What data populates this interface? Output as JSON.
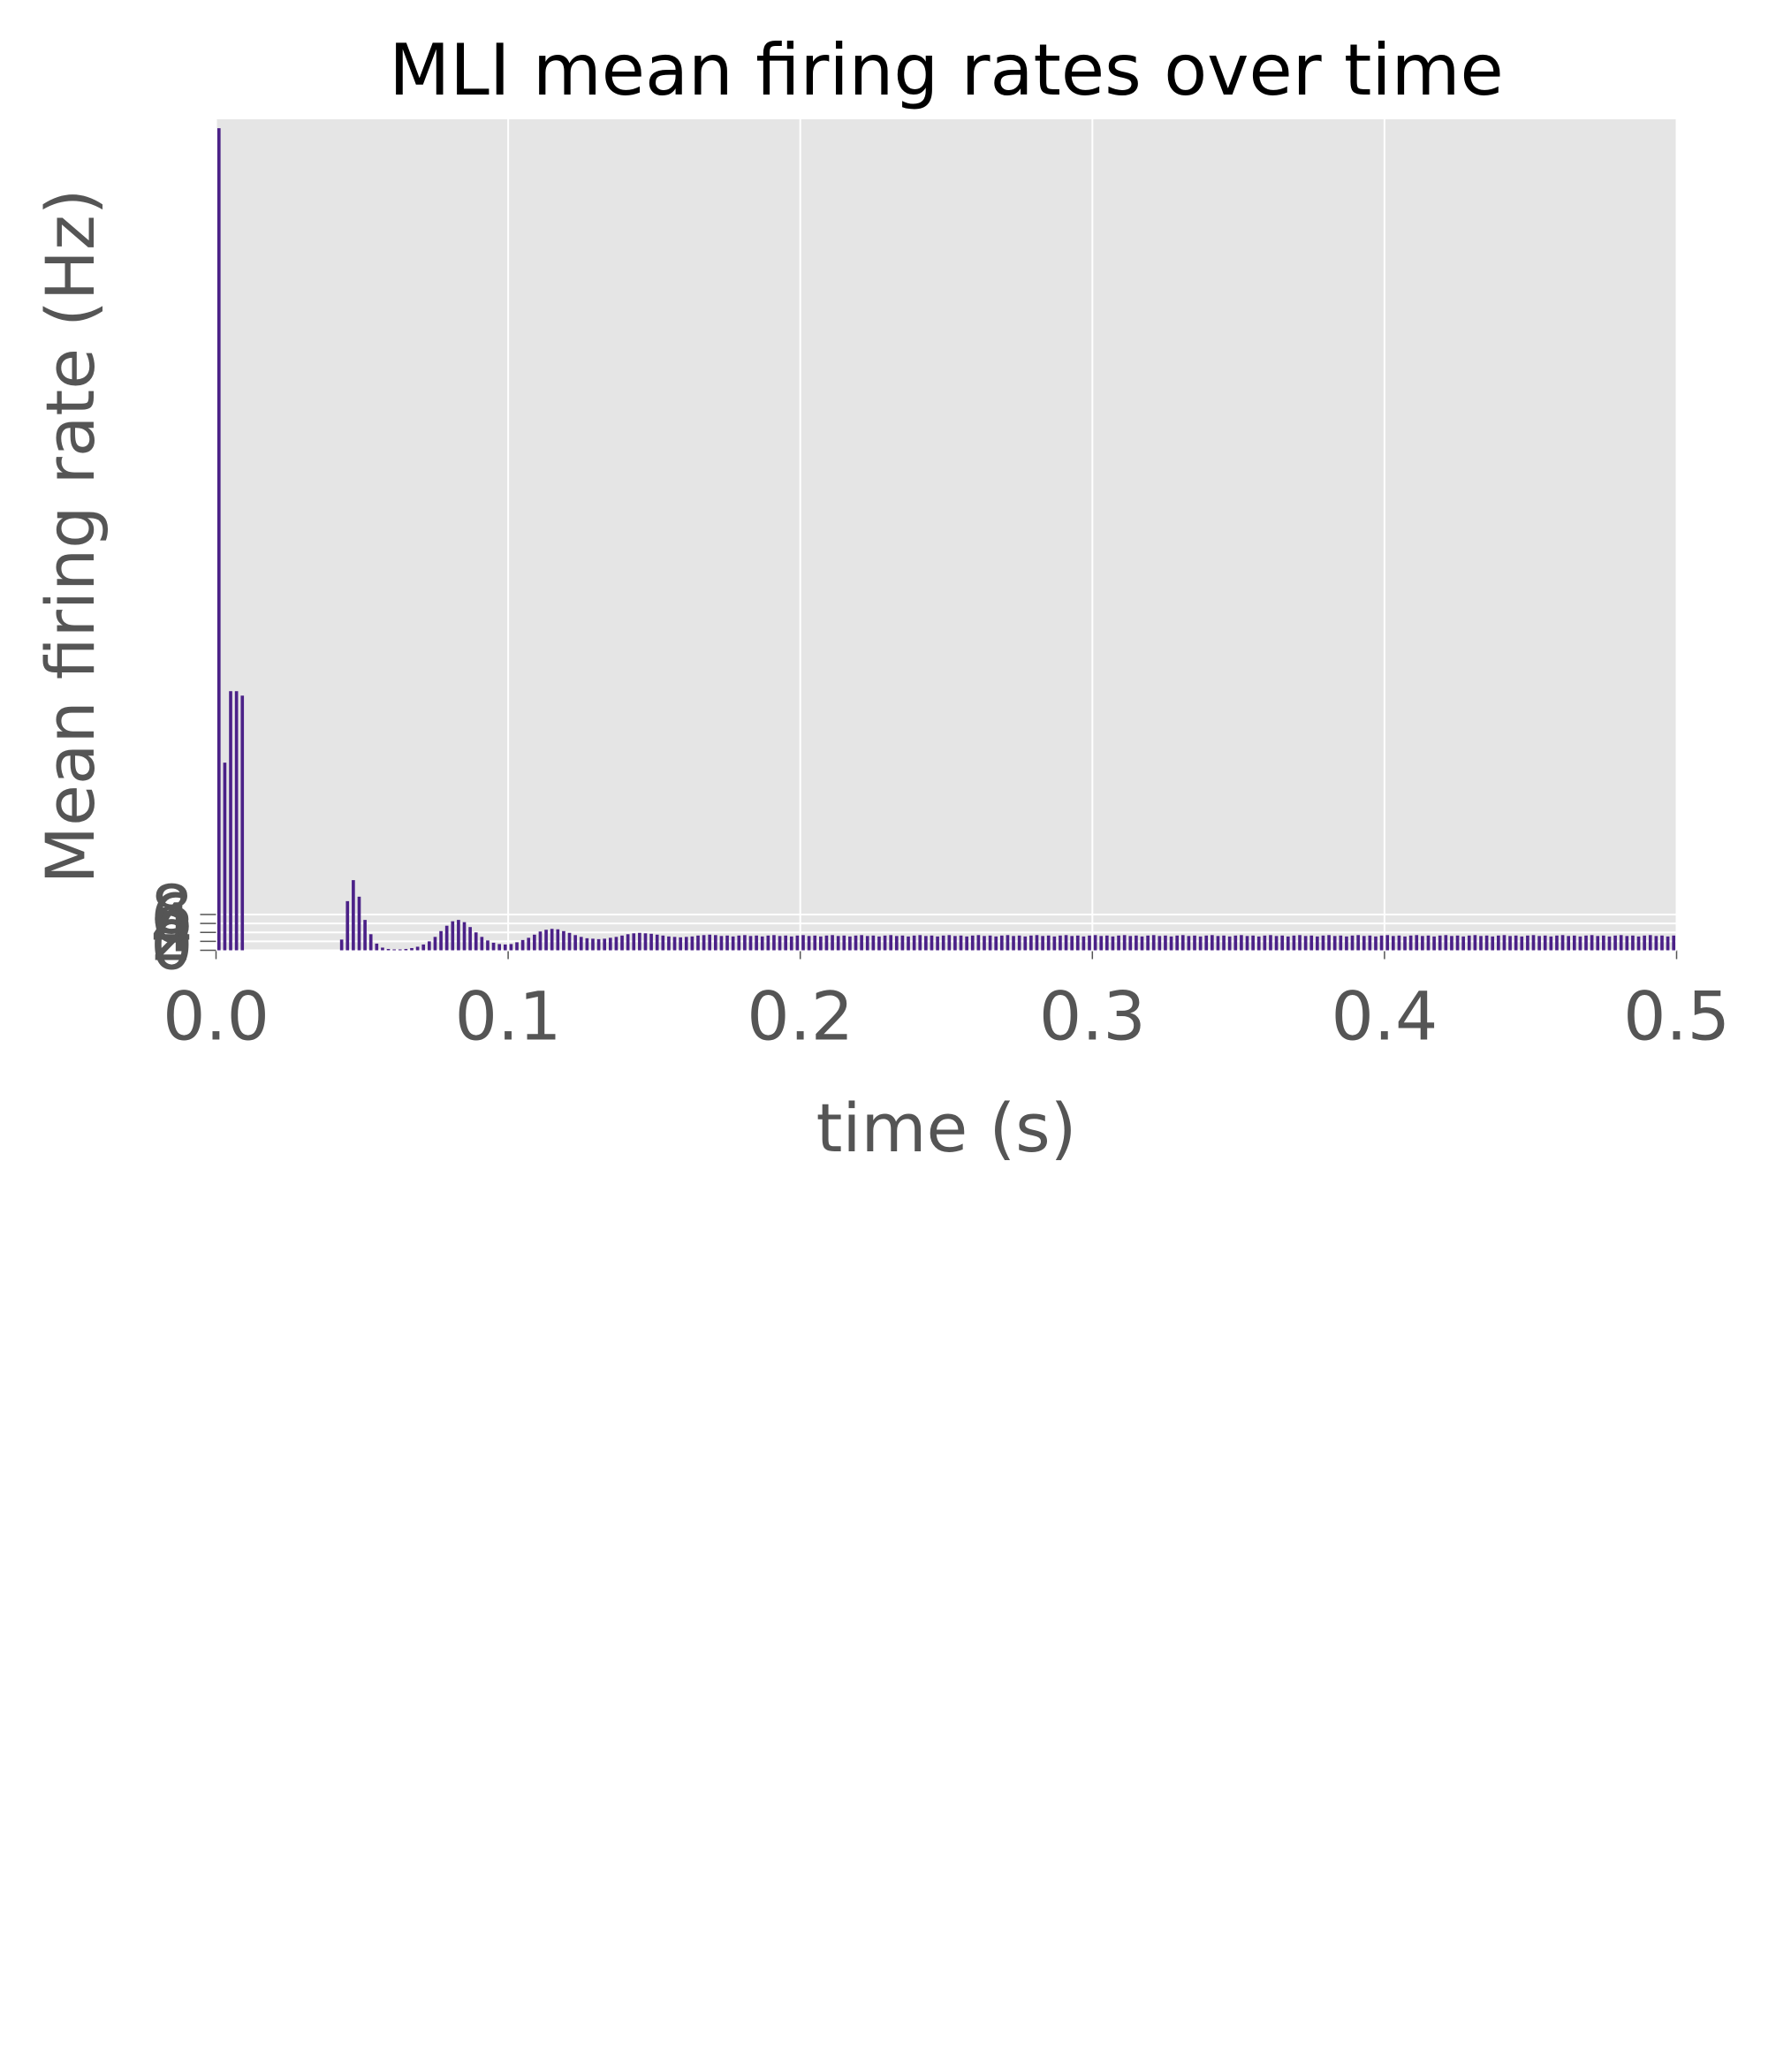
{
  "chart_data": {
    "type": "bar",
    "title": "MLI mean firing rates over time",
    "xlabel": "time (s)",
    "ylabel": "Mean firing rate (Hz)",
    "color": "#4b2188",
    "grid": true,
    "xlim": [
      0,
      0.5
    ],
    "xticks": [
      {
        "value": 0,
        "label": "0.0"
      },
      0.1,
      0.2,
      0.3,
      0.4,
      0.5
    ],
    "ylim": [
      0,
      186
    ],
    "yticks": [
      0,
      2,
      4,
      6,
      8
    ],
    "x": [
      0.001,
      0.003,
      0.005,
      0.007,
      0.009,
      0.011,
      0.013,
      0.015,
      0.017,
      0.019,
      0.021,
      0.023,
      0.025,
      0.027,
      0.029,
      0.031,
      0.033,
      0.035,
      0.037,
      0.039,
      0.041,
      0.043,
      0.045,
      0.047,
      0.049,
      0.051,
      0.053,
      0.055,
      0.057,
      0.059,
      0.061,
      0.063,
      0.065,
      0.067,
      0.069,
      0.071,
      0.073,
      0.075,
      0.077,
      0.079,
      0.081,
      0.083,
      0.085,
      0.087,
      0.089,
      0.091,
      0.093,
      0.095,
      0.097,
      0.099,
      0.101,
      0.103,
      0.105,
      0.107,
      0.109,
      0.111,
      0.113,
      0.115,
      0.117,
      0.119,
      0.121,
      0.123,
      0.125,
      0.127,
      0.129,
      0.131,
      0.133,
      0.135,
      0.137,
      0.139,
      0.141,
      0.143,
      0.145,
      0.147,
      0.149,
      0.151,
      0.153,
      0.155,
      0.157,
      0.159,
      0.161,
      0.163,
      0.165,
      0.167,
      0.169,
      0.171,
      0.173,
      0.175,
      0.177,
      0.179,
      0.181,
      0.183,
      0.185,
      0.187,
      0.189,
      0.191,
      0.193,
      0.195,
      0.197,
      0.199,
      0.201,
      0.203,
      0.205,
      0.207,
      0.209,
      0.211,
      0.213,
      0.215,
      0.217,
      0.219,
      0.221,
      0.223,
      0.225,
      0.227,
      0.229,
      0.231,
      0.233,
      0.235,
      0.237,
      0.239,
      0.241,
      0.243,
      0.245,
      0.247,
      0.249,
      0.251,
      0.253,
      0.255,
      0.257,
      0.259,
      0.261,
      0.263,
      0.265,
      0.267,
      0.269,
      0.271,
      0.273,
      0.275,
      0.277,
      0.279,
      0.281,
      0.283,
      0.285,
      0.287,
      0.289,
      0.291,
      0.293,
      0.295,
      0.297,
      0.299,
      0.301,
      0.303,
      0.305,
      0.307,
      0.309,
      0.311,
      0.313,
      0.315,
      0.317,
      0.319,
      0.321,
      0.323,
      0.325,
      0.327,
      0.329,
      0.331,
      0.333,
      0.335,
      0.337,
      0.339,
      0.341,
      0.343,
      0.345,
      0.347,
      0.349,
      0.351,
      0.353,
      0.355,
      0.357,
      0.359,
      0.361,
      0.363,
      0.365,
      0.367,
      0.369,
      0.371,
      0.373,
      0.375,
      0.377,
      0.379,
      0.381,
      0.383,
      0.385,
      0.387,
      0.389,
      0.391,
      0.393,
      0.395,
      0.397,
      0.399,
      0.401,
      0.403,
      0.405,
      0.407,
      0.409,
      0.411,
      0.413,
      0.415,
      0.417,
      0.419,
      0.421,
      0.423,
      0.425,
      0.427,
      0.429,
      0.431,
      0.433,
      0.435,
      0.437,
      0.439,
      0.441,
      0.443,
      0.445,
      0.447,
      0.449,
      0.451,
      0.453,
      0.455,
      0.457,
      0.459,
      0.461,
      0.463,
      0.465,
      0.467,
      0.469,
      0.471,
      0.473,
      0.475,
      0.477,
      0.479,
      0.481,
      0.483,
      0.485,
      0.487,
      0.489,
      0.491,
      0.493,
      0.495,
      0.497,
      0.499
    ],
    "values": [
      184,
      42,
      58,
      58,
      57,
      0,
      0,
      0,
      0,
      0,
      0,
      0,
      0,
      0,
      0,
      0,
      0,
      0,
      0,
      0,
      0,
      2.4,
      11,
      15.7,
      12,
      6.8,
      3.6,
      1.5,
      0.6,
      0.3,
      0.2,
      0.2,
      0.3,
      0.5,
      0.8,
      1.3,
      2,
      3,
      4.3,
      5.5,
      6.5,
      6.8,
      6.3,
      5.2,
      4,
      3,
      2.2,
      1.7,
      1.4,
      1.3,
      1.4,
      1.8,
      2.3,
      2.8,
      3.5,
      4.2,
      4.6,
      4.8,
      4.7,
      4.3,
      3.9,
      3.4,
      3,
      2.7,
      2.6,
      2.5,
      2.6,
      2.8,
      3,
      3.3,
      3.6,
      3.8,
      3.9,
      3.8,
      3.7,
      3.5,
      3.3,
      3.1,
      3,
      2.9,
      3,
      3.1,
      3.3,
      3.4,
      3.5,
      3.4,
      3.2,
      3.3,
      3.1,
      3.3,
      3.4,
      3.2,
      3.3,
      3.1,
      3.3,
      3.4,
      3.2,
      3.3,
      3.1,
      3.3,
      3.4,
      3.2,
      3.3,
      3.1,
      3.3,
      3.4,
      3.2,
      3.3,
      3.1,
      3.3,
      3.4,
      3.2,
      3.3,
      3.1,
      3.3,
      3.4,
      3.2,
      3.3,
      3.1,
      3.3,
      3.4,
      3.2,
      3.3,
      3.1,
      3.3,
      3.4,
      3.2,
      3.3,
      3.1,
      3.3,
      3.4,
      3.2,
      3.3,
      3.1,
      3.3,
      3.4,
      3.2,
      3.3,
      3.1,
      3.3,
      3.4,
      3.2,
      3.3,
      3.1,
      3.3,
      3.4,
      3.2,
      3.3,
      3.1,
      3.3,
      3.4,
      3.2,
      3.3,
      3.1,
      3.3,
      3.4,
      3.2,
      3.3,
      3.1,
      3.3,
      3.4,
      3.2,
      3.3,
      3.1,
      3.3,
      3.4,
      3.2,
      3.3,
      3.1,
      3.3,
      3.4,
      3.2,
      3.3,
      3.1,
      3.3,
      3.4,
      3.2,
      3.3,
      3.1,
      3.3,
      3.4,
      3.2,
      3.3,
      3.1,
      3.3,
      3.4,
      3.2,
      3.3,
      3.1,
      3.3,
      3.4,
      3.2,
      3.3,
      3.1,
      3.3,
      3.4,
      3.2,
      3.3,
      3.1,
      3.3,
      3.4,
      3.2,
      3.3,
      3.1,
      3.3,
      3.4,
      3.2,
      3.3,
      3.1,
      3.3,
      3.4,
      3.2,
      3.3,
      3.1,
      3.3,
      3.4,
      3.2,
      3.3,
      3.1,
      3.3,
      3.4,
      3.2,
      3.3,
      3.1,
      3.3,
      3.4,
      3.2,
      3.3,
      3.1,
      3.3,
      3.4,
      3.2,
      3.3,
      3.1,
      3.3,
      3.4,
      3.2,
      3.3,
      3.1,
      3.3,
      3.4,
      3.2,
      3.3,
      3.1,
      3.3,
      3.4,
      3.2,
      3.3,
      3.1,
      3.3
    ]
  }
}
